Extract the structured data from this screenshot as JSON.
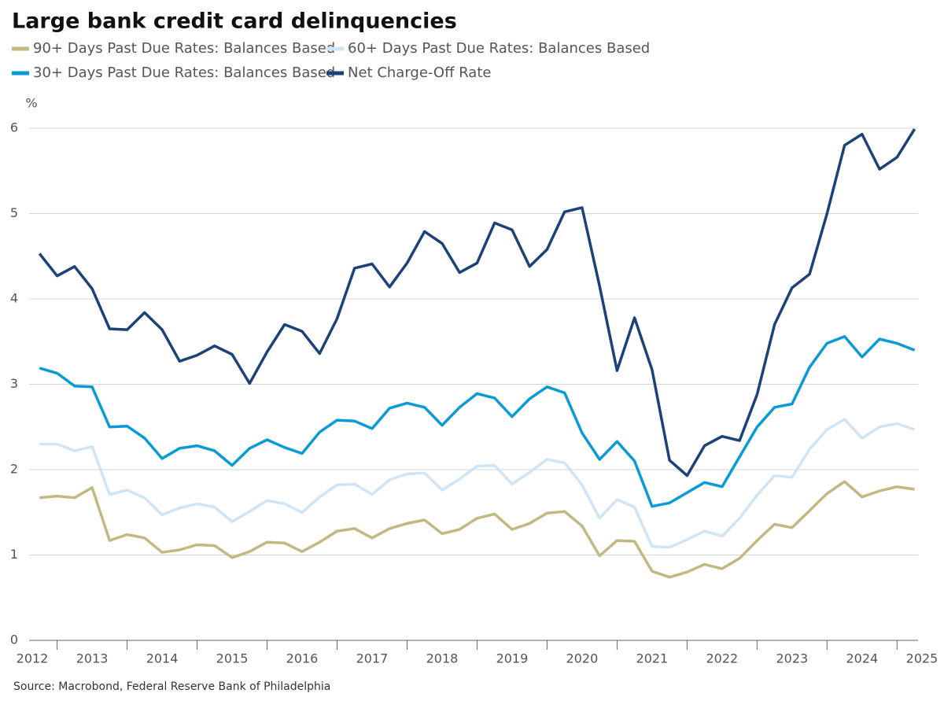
{
  "chart_data": {
    "type": "line",
    "title": "Large bank credit card delinquencies",
    "y_label": "%",
    "source": "Source: Macrobond, Federal Reserve Bank of Philadelphia",
    "x": [
      2012.75,
      2013,
      2013.25,
      2013.5,
      2013.75,
      2014,
      2014.25,
      2014.5,
      2014.75,
      2015,
      2015.25,
      2015.5,
      2015.75,
      2016,
      2016.25,
      2016.5,
      2016.75,
      2017,
      2017.25,
      2017.5,
      2017.75,
      2018,
      2018.25,
      2018.5,
      2018.75,
      2019,
      2019.25,
      2019.5,
      2019.75,
      2020,
      2020.25,
      2020.5,
      2020.75,
      2021,
      2021.25,
      2021.5,
      2021.75,
      2022,
      2022.25,
      2022.5,
      2022.75,
      2023,
      2023.25,
      2023.5,
      2023.75,
      2024,
      2024.25,
      2024.5,
      2024.75,
      2025,
      2025.25
    ],
    "xlim": [
      2012.6,
      2025.3
    ],
    "xticks": [
      2012,
      2013,
      2014,
      2015,
      2016,
      2017,
      2018,
      2019,
      2020,
      2021,
      2022,
      2023,
      2024,
      2025
    ],
    "ylim": [
      0,
      6
    ],
    "yticks": [
      0,
      1,
      2,
      3,
      4,
      5,
      6
    ],
    "grid": true,
    "series": [
      {
        "name": "90+ Days Past Due Rates: Balances Based",
        "color": "#c2b982",
        "values": [
          1.67,
          1.69,
          1.67,
          1.79,
          1.17,
          1.24,
          1.2,
          1.03,
          1.06,
          1.12,
          1.11,
          0.97,
          1.04,
          1.15,
          1.14,
          1.04,
          1.15,
          1.28,
          1.31,
          1.2,
          1.31,
          1.37,
          1.41,
          1.25,
          1.3,
          1.43,
          1.48,
          1.3,
          1.37,
          1.49,
          1.51,
          1.34,
          0.99,
          1.17,
          1.16,
          0.81,
          0.74,
          0.8,
          0.89,
          0.84,
          0.96,
          1.17,
          1.36,
          1.32,
          1.52,
          1.72,
          1.86,
          1.68,
          1.75,
          1.8,
          1.77
        ]
      },
      {
        "name": "60+ Days Past Due Rates: Balances Based",
        "color": "#cfe5f5",
        "values": [
          2.3,
          2.3,
          2.22,
          2.27,
          1.71,
          1.76,
          1.67,
          1.47,
          1.55,
          1.6,
          1.56,
          1.39,
          1.51,
          1.64,
          1.6,
          1.5,
          1.68,
          1.82,
          1.83,
          1.71,
          1.88,
          1.95,
          1.96,
          1.76,
          1.89,
          2.04,
          2.05,
          1.83,
          1.97,
          2.12,
          2.08,
          1.82,
          1.43,
          1.65,
          1.56,
          1.1,
          1.09,
          1.18,
          1.28,
          1.22,
          1.43,
          1.7,
          1.93,
          1.91,
          2.24,
          2.47,
          2.59,
          2.37,
          2.5,
          2.54,
          2.47
        ]
      },
      {
        "name": "30+ Days Past Due Rates: Balances Based",
        "color": "#0a9bd6",
        "values": [
          3.19,
          3.13,
          2.98,
          2.97,
          2.5,
          2.51,
          2.37,
          2.13,
          2.25,
          2.28,
          2.22,
          2.05,
          2.25,
          2.35,
          2.26,
          2.19,
          2.44,
          2.58,
          2.57,
          2.48,
          2.72,
          2.78,
          2.73,
          2.52,
          2.73,
          2.89,
          2.84,
          2.62,
          2.83,
          2.97,
          2.9,
          2.43,
          2.12,
          2.33,
          2.1,
          1.57,
          1.61,
          1.73,
          1.85,
          1.8,
          2.15,
          2.5,
          2.73,
          2.77,
          3.2,
          3.48,
          3.56,
          3.32,
          3.53,
          3.48,
          3.4
        ]
      },
      {
        "name": "Net Charge-Off Rate",
        "color": "#1c4279",
        "values": [
          4.53,
          4.27,
          4.38,
          4.12,
          3.65,
          3.64,
          3.84,
          3.64,
          3.27,
          3.34,
          3.45,
          3.35,
          3.01,
          3.38,
          3.7,
          3.62,
          3.36,
          3.77,
          4.36,
          4.41,
          4.14,
          4.42,
          4.79,
          4.65,
          4.31,
          4.42,
          4.89,
          4.81,
          4.38,
          4.58,
          5.02,
          5.07,
          4.15,
          3.16,
          3.78,
          3.17,
          2.11,
          1.93,
          2.28,
          2.39,
          2.34,
          2.88,
          3.7,
          4.13,
          4.29,
          5.0,
          5.8,
          5.93,
          5.52,
          5.66,
          5.99
        ]
      }
    ]
  }
}
